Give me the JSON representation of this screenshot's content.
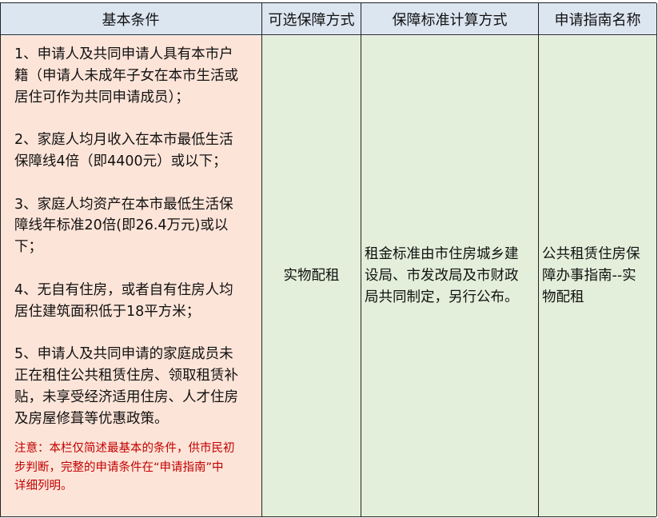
{
  "headers": [
    "基本条件",
    "可选保障方式",
    "保障标准计算方式",
    "申请指南名称"
  ],
  "conditions": {
    "lines": [
      " 1、申请人及共同申请人具有本市户",
      "籍（申请人未成年子女在本市生活或",
      "居住可作为共同申请成员）；",
      "",
      "2、家庭人均月收入在本市最低生活",
      "保障线4倍（即4400元）或以下；",
      "",
      "3、家庭人均资产在本市最低生活保",
      "障线年标准20倍(即26.4万元)或以",
      "下；",
      "",
      "4、无自有住房，或者自有住房人均",
      "居住建筑面积低于18平方米；",
      "",
      "5、申请人及共同申请的家庭成员未",
      "正在租住公共租赁住房、领取租赁补",
      "贴，未享受经济适用住房、人才住房",
      "及房屋修葺等优惠政策。"
    ],
    "note_lines": [
      "注意：本栏仅简述最基本的条件，供市民初",
      "步判断，完整的申请条件在“申请指南”中",
      "详细列明。"
    ],
    "note_color": "#c00000"
  },
  "method": "实物配租",
  "standard_lines": [
    "租金标准由市住房城乡建",
    "设局、市发改局及市财政",
    "局共同制定，另行公布。"
  ],
  "guide_lines": [
    "公共租赁住房保",
    "障办事指南--实",
    "物配租"
  ],
  "colors": {
    "header_bg": "#dce6f1",
    "conditions_bg": "#fde4d8",
    "other_bg": "#e3efda"
  }
}
